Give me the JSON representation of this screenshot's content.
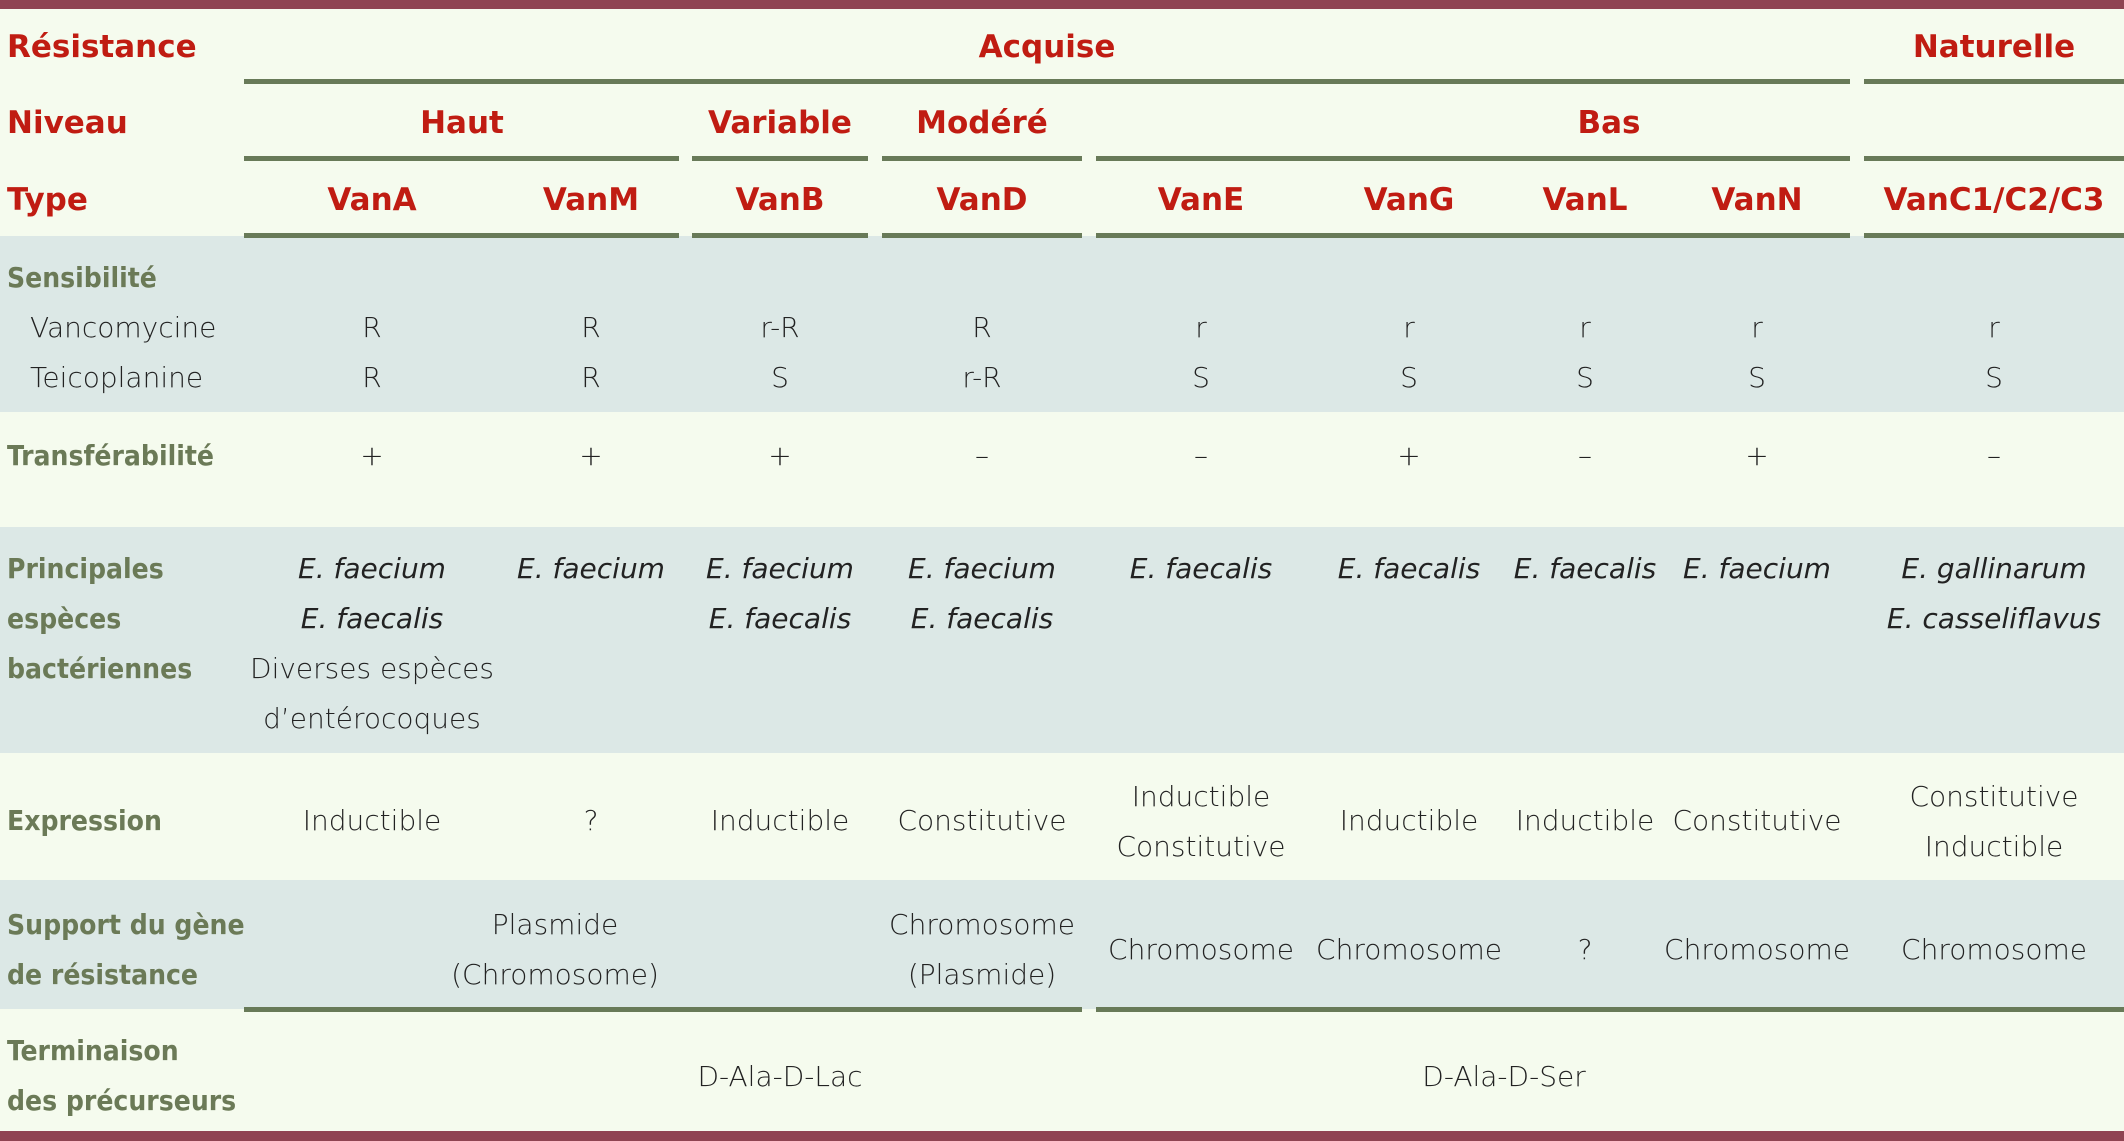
{
  "colors": {
    "accent_red": "#c01c12",
    "label_green": "#6b7a57",
    "rule_green": "#687a58",
    "frame": "#8f4452",
    "shaded_row": "#dce8e6",
    "background": "#f5fbee"
  },
  "header": {
    "resistance_label": "Résistance",
    "acquise": "Acquise",
    "naturelle": "Naturelle",
    "niveau_label": "Niveau",
    "niveaux": [
      "Haut",
      "Variable",
      "Modéré",
      "Bas"
    ],
    "type_label": "Type",
    "types": [
      "VanA",
      "VanM",
      "VanB",
      "VanD",
      "VanE",
      "VanG",
      "VanL",
      "VanN",
      "VanC1/C2/C3"
    ]
  },
  "sensibilite": {
    "label": "Sensibilité",
    "vancomycine": {
      "label": "Vancomycine",
      "values": [
        "R",
        "R",
        "r-R",
        "R",
        "r",
        "r",
        "r",
        "r",
        "r"
      ]
    },
    "teicoplanine": {
      "label": "Teicoplanine",
      "values": [
        "R",
        "R",
        "S",
        "r-R",
        "S",
        "S",
        "S",
        "S",
        "S"
      ]
    }
  },
  "transferabilite": {
    "label": "Transférabilité",
    "values": [
      "+",
      "+",
      "+",
      "–",
      "–",
      "+",
      "–",
      "+",
      "–"
    ]
  },
  "especes": {
    "label": [
      "Principales",
      "espèces",
      "bactériennes"
    ],
    "values": [
      [
        "E. faecium",
        "E. faecalis",
        "Diverses espèces",
        "d’entérocoques"
      ],
      [
        "E. faecium"
      ],
      [
        "E. faecium",
        "E. faecalis"
      ],
      [
        "E. faecium",
        "E. faecalis"
      ],
      [
        "E. faecalis"
      ],
      [
        "E. faecalis"
      ],
      [
        "E. faecalis"
      ],
      [
        "E. faecium"
      ],
      [
        "E. gallinarum",
        "E. casseliflavus"
      ]
    ]
  },
  "expression": {
    "label": "Expression",
    "values": [
      [
        "Inductible"
      ],
      [
        "?"
      ],
      [
        "Inductible"
      ],
      [
        "Constitutive"
      ],
      [
        "Inductible",
        "Constitutive"
      ],
      [
        "Inductible"
      ],
      [
        "Inductible"
      ],
      [
        "Constitutive"
      ],
      [
        "Constitutive",
        "Inductible"
      ]
    ]
  },
  "support": {
    "label": [
      "Support du gène",
      "de résistance"
    ],
    "vana_vanm": [
      "Plasmide",
      "(Chromosome)"
    ],
    "values_from_vand": [
      [
        "Chromosome",
        "(Plasmide)"
      ],
      [
        "Chromosome"
      ],
      [
        "Chromosome"
      ],
      [
        "?"
      ],
      [
        "Chromosome"
      ],
      [
        "Chromosome"
      ]
    ]
  },
  "terminaison": {
    "label": [
      "Terminaison",
      "des précurseurs"
    ],
    "d_ala_d_lac": "D-Ala-D-Lac",
    "d_ala_d_ser": "D-Ala-D-Ser"
  }
}
